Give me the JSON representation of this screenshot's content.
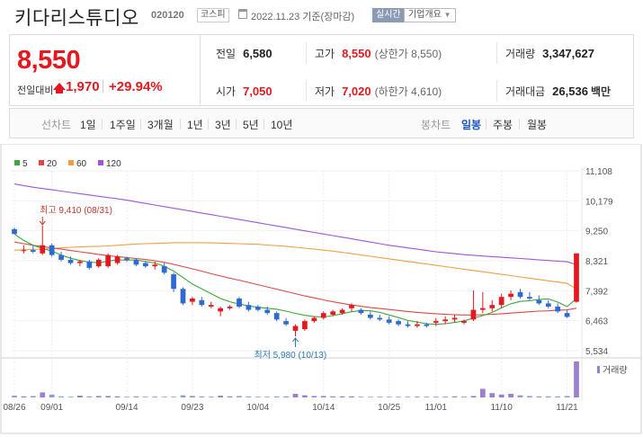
{
  "header": {
    "name": "키다리스튜디오",
    "code": "020120",
    "market": "코스피",
    "date": "2022.11.23 기준(장마감)",
    "realtime": "실시간",
    "company_info": "기업개요"
  },
  "price": {
    "current": "8,550",
    "change_label": "전일대비",
    "change": "1,970",
    "change_rate": "+29.94%"
  },
  "stats": {
    "prev_close_label": "전일",
    "prev_close": "6,580",
    "high_label": "고가",
    "high": "8,550",
    "upper_limit": "(상한가 8,550)",
    "volume_label": "거래량",
    "volume": "3,347,627",
    "open_label": "시가",
    "open": "7,050",
    "low_label": "저가",
    "low": "7,020",
    "lower_limit": "(하한가 4,610)",
    "trade_value_label": "거래대금",
    "trade_value": "26,536",
    "trade_value_unit": "백만"
  },
  "period": {
    "line_chart": "선차트",
    "ranges": [
      "1일",
      "1주일",
      "3개월",
      "1년",
      "3년",
      "5년",
      "10년"
    ],
    "candle_chart": "봉차트",
    "candles": [
      "일봉",
      "주봉",
      "월봉"
    ],
    "active_candle": "일봉"
  },
  "chart_data": {
    "type": "candlestick",
    "legend": [
      {
        "name": "5",
        "color": "#3aa83a"
      },
      {
        "name": "20",
        "color": "#e04646"
      },
      {
        "name": "60",
        "color": "#f0a040"
      },
      {
        "name": "120",
        "color": "#a155d6"
      }
    ],
    "y_ticks": [
      "11,108",
      "10,179",
      "9,250",
      "8,321",
      "7,392",
      "6,463",
      "5,534"
    ],
    "y_min": 5534,
    "y_max": 11108,
    "x_labels": [
      "08/26",
      "09/01",
      "09/14",
      "09/23",
      "10/04",
      "10/14",
      "10/25",
      "11/01",
      "11/10",
      "11/21"
    ],
    "x_label_index": [
      0,
      4,
      12,
      19,
      26,
      33,
      40,
      45,
      52,
      59
    ],
    "annotations": {
      "high_label": "최고 9,410 (08/31)",
      "high_index": 3,
      "high_value": 9410,
      "low_label": "최저 5,980 (10/13)",
      "low_index": 30,
      "low_value": 5980
    },
    "volume_label": "거래량",
    "candles": [
      {
        "o": 9300,
        "h": 9350,
        "l": 9150,
        "c": 9150
      },
      {
        "o": 8650,
        "h": 8800,
        "l": 8550,
        "c": 8650
      },
      {
        "o": 8650,
        "h": 8800,
        "l": 8550,
        "c": 8600
      },
      {
        "o": 8550,
        "h": 9410,
        "l": 8500,
        "c": 8800
      },
      {
        "o": 8800,
        "h": 8850,
        "l": 8450,
        "c": 8500
      },
      {
        "o": 8500,
        "h": 8600,
        "l": 8300,
        "c": 8350
      },
      {
        "o": 8350,
        "h": 8450,
        "l": 8200,
        "c": 8250
      },
      {
        "o": 8250,
        "h": 8350,
        "l": 8150,
        "c": 8300
      },
      {
        "o": 8300,
        "h": 8350,
        "l": 8050,
        "c": 8100
      },
      {
        "o": 8150,
        "h": 8400,
        "l": 8100,
        "c": 8350
      },
      {
        "o": 8150,
        "h": 8550,
        "l": 8100,
        "c": 8500
      },
      {
        "o": 8250,
        "h": 8500,
        "l": 8200,
        "c": 8450
      },
      {
        "o": 8400,
        "h": 8450,
        "l": 8300,
        "c": 8350
      },
      {
        "o": 8350,
        "h": 8400,
        "l": 8150,
        "c": 8200
      },
      {
        "o": 8250,
        "h": 8300,
        "l": 8100,
        "c": 8150
      },
      {
        "o": 8150,
        "h": 8300,
        "l": 8050,
        "c": 8200
      },
      {
        "o": 8150,
        "h": 8250,
        "l": 7900,
        "c": 7950
      },
      {
        "o": 7900,
        "h": 7950,
        "l": 7350,
        "c": 7450
      },
      {
        "o": 7450,
        "h": 7500,
        "l": 6950,
        "c": 7000
      },
      {
        "o": 7050,
        "h": 7200,
        "l": 6950,
        "c": 7150
      },
      {
        "o": 7100,
        "h": 7200,
        "l": 6900,
        "c": 6950
      },
      {
        "o": 6900,
        "h": 7050,
        "l": 6850,
        "c": 6950
      },
      {
        "o": 6750,
        "h": 6900,
        "l": 6600,
        "c": 6850
      },
      {
        "o": 6850,
        "h": 6950,
        "l": 6800,
        "c": 6900
      },
      {
        "o": 7150,
        "h": 7200,
        "l": 6850,
        "c": 6900
      },
      {
        "o": 6950,
        "h": 7050,
        "l": 6750,
        "c": 6800
      },
      {
        "o": 6900,
        "h": 6950,
        "l": 6750,
        "c": 6800
      },
      {
        "o": 6800,
        "h": 6900,
        "l": 6650,
        "c": 6700
      },
      {
        "o": 6700,
        "h": 6750,
        "l": 6450,
        "c": 6500
      },
      {
        "o": 6450,
        "h": 6550,
        "l": 6300,
        "c": 6350
      },
      {
        "o": 6150,
        "h": 6350,
        "l": 5980,
        "c": 6300
      },
      {
        "o": 6200,
        "h": 6500,
        "l": 6150,
        "c": 6450
      },
      {
        "o": 6450,
        "h": 6600,
        "l": 6400,
        "c": 6550
      },
      {
        "o": 6550,
        "h": 6750,
        "l": 6500,
        "c": 6700
      },
      {
        "o": 6650,
        "h": 6800,
        "l": 6600,
        "c": 6750
      },
      {
        "o": 6700,
        "h": 6850,
        "l": 6650,
        "c": 6800
      },
      {
        "o": 6850,
        "h": 7000,
        "l": 6750,
        "c": 6950
      },
      {
        "o": 6800,
        "h": 6850,
        "l": 6650,
        "c": 6700
      },
      {
        "o": 6650,
        "h": 6750,
        "l": 6500,
        "c": 6550
      },
      {
        "o": 6550,
        "h": 6650,
        "l": 6450,
        "c": 6500
      },
      {
        "o": 6500,
        "h": 6600,
        "l": 6350,
        "c": 6400
      },
      {
        "o": 6450,
        "h": 6500,
        "l": 6300,
        "c": 6350
      },
      {
        "o": 6350,
        "h": 6450,
        "l": 6250,
        "c": 6300
      },
      {
        "o": 6300,
        "h": 6450,
        "l": 6250,
        "c": 6350
      },
      {
        "o": 6350,
        "h": 6400,
        "l": 6250,
        "c": 6300
      },
      {
        "o": 6400,
        "h": 6550,
        "l": 6300,
        "c": 6450
      },
      {
        "o": 6450,
        "h": 6600,
        "l": 6350,
        "c": 6500
      },
      {
        "o": 6500,
        "h": 6650,
        "l": 6400,
        "c": 6550
      },
      {
        "o": 6400,
        "h": 6500,
        "l": 6350,
        "c": 6450
      },
      {
        "o": 6500,
        "h": 7400,
        "l": 6450,
        "c": 6800
      },
      {
        "o": 6800,
        "h": 7350,
        "l": 6700,
        "c": 6850
      },
      {
        "o": 6850,
        "h": 7100,
        "l": 6750,
        "c": 6950
      },
      {
        "o": 6950,
        "h": 7300,
        "l": 6850,
        "c": 7200
      },
      {
        "o": 7200,
        "h": 7400,
        "l": 7100,
        "c": 7300
      },
      {
        "o": 7350,
        "h": 7450,
        "l": 7150,
        "c": 7200
      },
      {
        "o": 7200,
        "h": 7350,
        "l": 7100,
        "c": 7150
      },
      {
        "o": 7100,
        "h": 7250,
        "l": 6950,
        "c": 7000
      },
      {
        "o": 7000,
        "h": 7100,
        "l": 6850,
        "c": 6900
      },
      {
        "o": 6900,
        "h": 7000,
        "l": 6700,
        "c": 6750
      },
      {
        "o": 6700,
        "h": 6800,
        "l": 6550,
        "c": 6580
      },
      {
        "o": 7050,
        "h": 8550,
        "l": 7020,
        "c": 8550
      }
    ],
    "ma5": [
      9150,
      8950,
      8800,
      8700,
      8620,
      8500,
      8400,
      8330,
      8280,
      8260,
      8310,
      8350,
      8340,
      8350,
      8300,
      8250,
      8150,
      8000,
      7800,
      7600,
      7450,
      7300,
      7150,
      7050,
      6980,
      6920,
      6880,
      6850,
      6820,
      6760,
      6690,
      6630,
      6590,
      6580,
      6620,
      6680,
      6740,
      6780,
      6770,
      6720,
      6640,
      6560,
      6470,
      6420,
      6370,
      6350,
      6370,
      6410,
      6460,
      6540,
      6620,
      6720,
      6860,
      6990,
      7060,
      7080,
      7120,
      7140,
      7040,
      6900,
      7150
    ],
    "ma20": [
      8900,
      8850,
      8800,
      8760,
      8720,
      8680,
      8640,
      8600,
      8560,
      8520,
      8480,
      8450,
      8420,
      8390,
      8360,
      8320,
      8270,
      8210,
      8140,
      8070,
      8000,
      7920,
      7850,
      7780,
      7720,
      7650,
      7580,
      7510,
      7440,
      7370,
      7300,
      7230,
      7170,
      7110,
      7050,
      7000,
      6950,
      6910,
      6870,
      6840,
      6810,
      6780,
      6750,
      6720,
      6700,
      6680,
      6660,
      6650,
      6640,
      6640,
      6650,
      6660,
      6680,
      6700,
      6720,
      6740,
      6760,
      6770,
      6790,
      6800,
      6850
    ],
    "ma60": [
      8650,
      8660,
      8670,
      8680,
      8700,
      8720,
      8740,
      8750,
      8760,
      8770,
      8780,
      8800,
      8820,
      8840,
      8850,
      8860,
      8870,
      8880,
      8880,
      8880,
      8880,
      8875,
      8870,
      8860,
      8850,
      8840,
      8830,
      8810,
      8790,
      8770,
      8740,
      8710,
      8680,
      8650,
      8620,
      8580,
      8540,
      8500,
      8460,
      8420,
      8380,
      8340,
      8300,
      8260,
      8220,
      8180,
      8140,
      8100,
      8060,
      8020,
      7980,
      7940,
      7900,
      7860,
      7820,
      7780,
      7740,
      7700,
      7660,
      7620,
      7450
    ],
    "ma120": [
      10700,
      10650,
      10600,
      10560,
      10520,
      10480,
      10440,
      10400,
      10360,
      10320,
      10280,
      10240,
      10200,
      10150,
      10100,
      10050,
      10000,
      9950,
      9900,
      9850,
      9800,
      9750,
      9700,
      9650,
      9600,
      9550,
      9500,
      9450,
      9400,
      9350,
      9300,
      9250,
      9200,
      9150,
      9100,
      9050,
      9000,
      8950,
      8900,
      8850,
      8800,
      8760,
      8720,
      8680,
      8640,
      8600,
      8570,
      8540,
      8510,
      8490,
      8470,
      8450,
      8430,
      8410,
      8390,
      8370,
      8350,
      8330,
      8310,
      8290,
      8200
    ],
    "volumes": [
      0.05,
      0.03,
      0.04,
      0.14,
      0.08,
      0.03,
      0.02,
      0.05,
      0.03,
      0.04,
      0.04,
      0.03,
      0.02,
      0.03,
      0.02,
      0.02,
      0.02,
      0.02,
      0.06,
      0.04,
      0.03,
      0.02,
      0.05,
      0.03,
      0.04,
      0.03,
      0.02,
      0.02,
      0.03,
      0.03,
      0.1,
      0.06,
      0.04,
      0.04,
      0.03,
      0.03,
      0.03,
      0.02,
      0.02,
      0.02,
      0.02,
      0.02,
      0.02,
      0.02,
      0.02,
      0.02,
      0.02,
      0.03,
      0.02,
      0.04,
      0.24,
      0.12,
      0.08,
      0.1,
      0.06,
      0.04,
      0.03,
      0.03,
      0.03,
      0.04,
      1.0
    ]
  }
}
